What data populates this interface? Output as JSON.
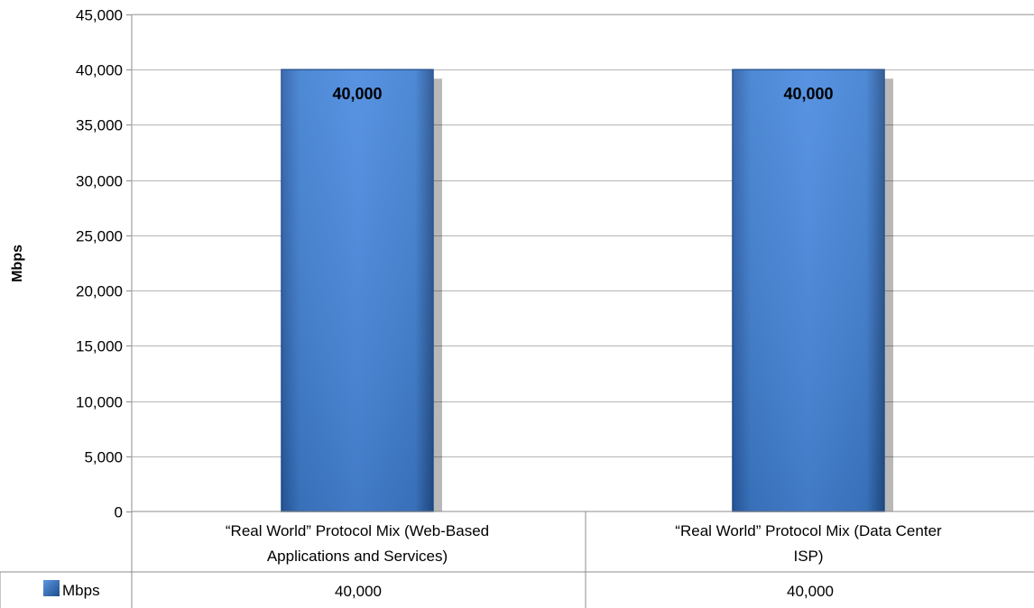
{
  "chart_data": {
    "type": "bar",
    "categories": [
      "“Real World” Protocol Mix (Web-Based Applications and Services)",
      "“Real World” Protocol Mix (Data Center ISP)"
    ],
    "category_lines": [
      [
        "“Real World” Protocol Mix (Web-Based",
        "Applications and Services)"
      ],
      [
        "“Real World” Protocol Mix (Data Center",
        "ISP)"
      ]
    ],
    "series": [
      {
        "name": "Mbps",
        "values": [
          40000,
          40000
        ]
      }
    ],
    "data_labels": [
      "40,000",
      "40,000"
    ],
    "table_values": [
      "40,000",
      "40,000"
    ],
    "ylabel": "Mbps",
    "ylim": [
      0,
      45000
    ],
    "yticks": [
      0,
      5000,
      10000,
      15000,
      20000,
      25000,
      30000,
      35000,
      40000,
      45000
    ],
    "ytick_labels": [
      "0",
      "5,000",
      "10,000",
      "15,000",
      "20,000",
      "25,000",
      "30,000",
      "35,000",
      "40,000",
      "45,000"
    ],
    "grid": true,
    "legend": "data-table",
    "colors": {
      "bar": "#3f7fd1",
      "bar_edge": "#1f4f8e",
      "grid": "#b5b5b5",
      "axis": "#8c8c8c"
    }
  }
}
